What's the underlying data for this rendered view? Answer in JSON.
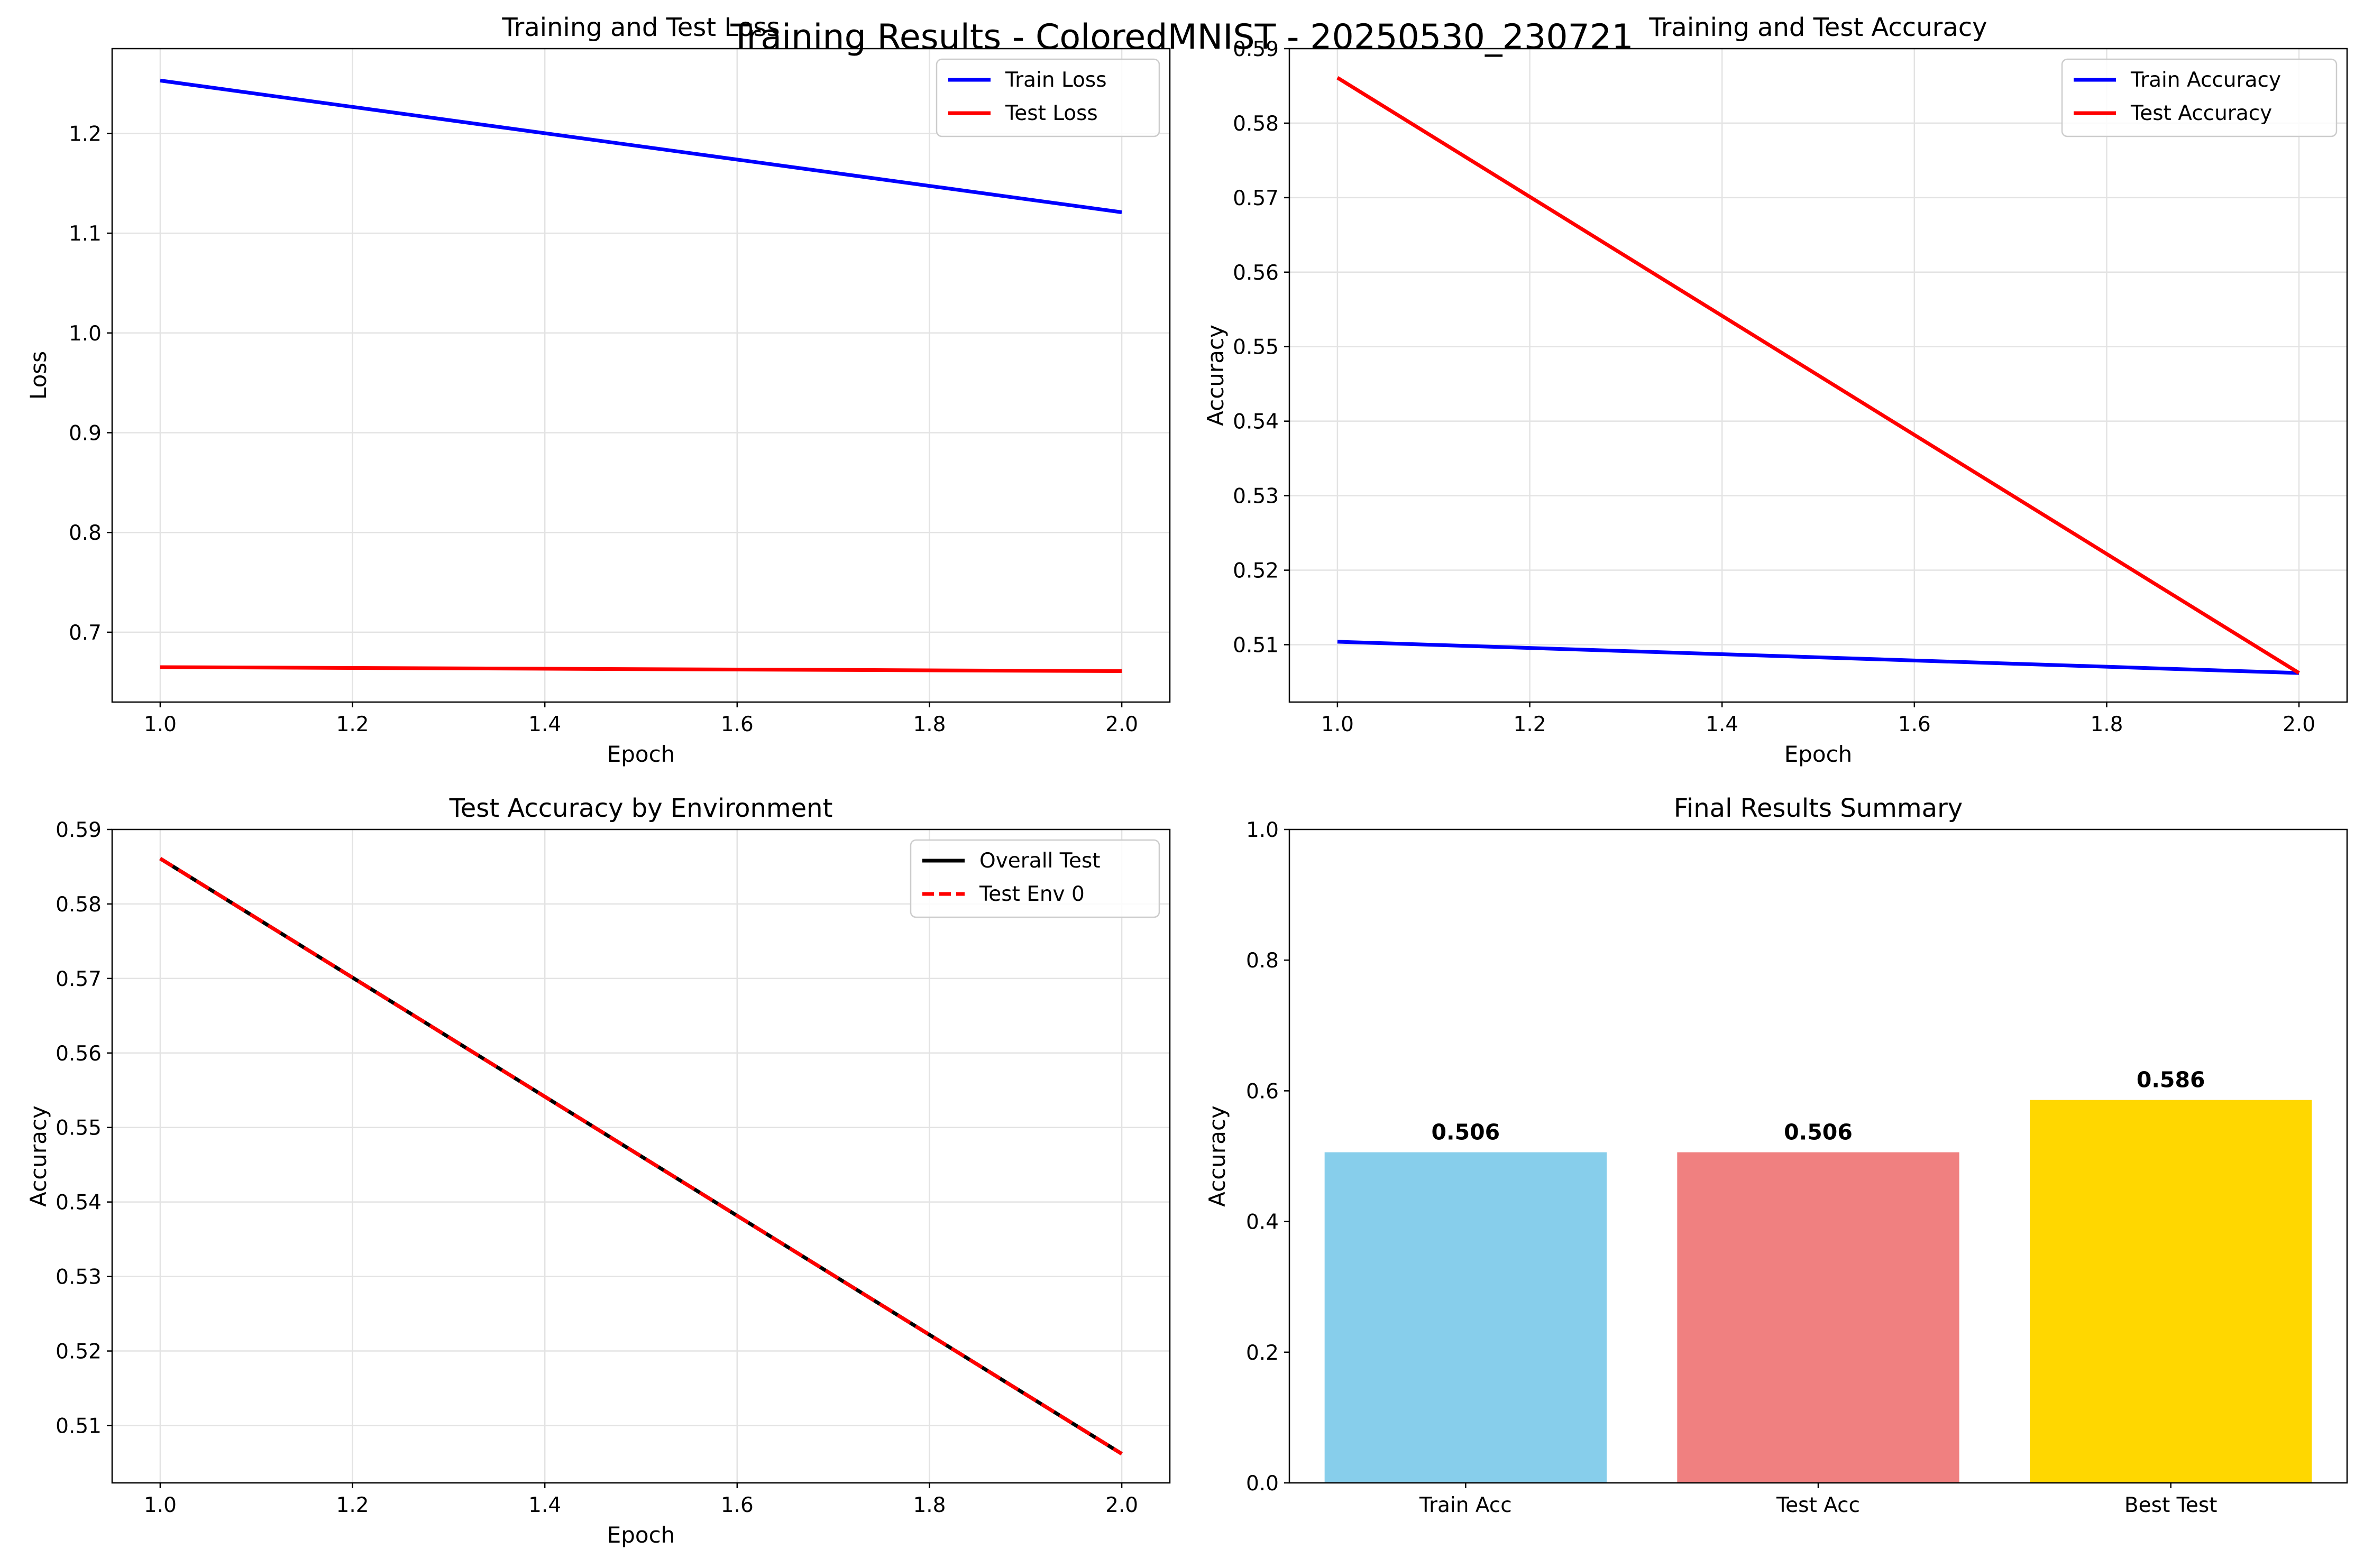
{
  "figure": {
    "title": "Training Results - ColoredMNIST - 20250530_230721"
  },
  "chart_data": [
    {
      "type": "line",
      "title": "Training and Test Loss",
      "xlabel": "Epoch",
      "ylabel": "Loss",
      "xlim": [
        0.95,
        2.05
      ],
      "ylim": [
        0.63,
        1.285
      ],
      "xticks": [
        1.0,
        1.2,
        1.4,
        1.6,
        1.8,
        2.0
      ],
      "yticks": [
        0.7,
        0.8,
        0.9,
        1.0,
        1.1,
        1.2
      ],
      "grid": true,
      "legend": "top-right",
      "x": [
        1.0,
        2.0
      ],
      "series": [
        {
          "name": "Train Loss",
          "values": [
            1.253,
            1.121
          ],
          "color": "#0000ff",
          "style": "solid"
        },
        {
          "name": "Test Loss",
          "values": [
            0.665,
            0.661
          ],
          "color": "#ff0000",
          "style": "solid"
        }
      ]
    },
    {
      "type": "line",
      "title": "Training and Test Accuracy",
      "xlabel": "Epoch",
      "ylabel": "Accuracy",
      "xlim": [
        0.95,
        2.05
      ],
      "ylim": [
        0.5023,
        0.59
      ],
      "xticks": [
        1.0,
        1.2,
        1.4,
        1.6,
        1.8,
        2.0
      ],
      "yticks": [
        0.51,
        0.52,
        0.53,
        0.54,
        0.55,
        0.56,
        0.57,
        0.58,
        0.59
      ],
      "grid": true,
      "legend": "top-right",
      "x": [
        1.0,
        2.0
      ],
      "series": [
        {
          "name": "Train Accuracy",
          "values": [
            0.5104,
            0.5062
          ],
          "color": "#0000ff",
          "style": "solid"
        },
        {
          "name": "Test Accuracy",
          "values": [
            0.5861,
            0.5062
          ],
          "color": "#ff0000",
          "style": "solid"
        }
      ]
    },
    {
      "type": "line",
      "title": "Test Accuracy by Environment",
      "xlabel": "Epoch",
      "ylabel": "Accuracy",
      "xlim": [
        0.95,
        2.05
      ],
      "ylim": [
        0.5023,
        0.59
      ],
      "xticks": [
        1.0,
        1.2,
        1.4,
        1.6,
        1.8,
        2.0
      ],
      "yticks": [
        0.51,
        0.52,
        0.53,
        0.54,
        0.55,
        0.56,
        0.57,
        0.58,
        0.59
      ],
      "grid": true,
      "legend": "top-right",
      "x": [
        1.0,
        2.0
      ],
      "series": [
        {
          "name": "Overall Test",
          "values": [
            0.5861,
            0.5062
          ],
          "color": "#000000",
          "style": "solid"
        },
        {
          "name": "Test Env 0",
          "values": [
            0.5861,
            0.5062
          ],
          "color": "#ff0000",
          "style": "dashed"
        }
      ]
    },
    {
      "type": "bar",
      "title": "Final Results Summary",
      "xlabel": "",
      "ylabel": "Accuracy",
      "ylim": [
        0,
        1.0
      ],
      "yticks": [
        0.0,
        0.2,
        0.4,
        0.6,
        0.8,
        1.0
      ],
      "grid": false,
      "categories": [
        "Train Acc",
        "Test Acc",
        "Best Test"
      ],
      "values": [
        0.506,
        0.506,
        0.586
      ],
      "value_labels": [
        "0.506",
        "0.506",
        "0.586"
      ],
      "colors": [
        "#87ceeb",
        "#f08080",
        "#ffd700"
      ]
    }
  ]
}
